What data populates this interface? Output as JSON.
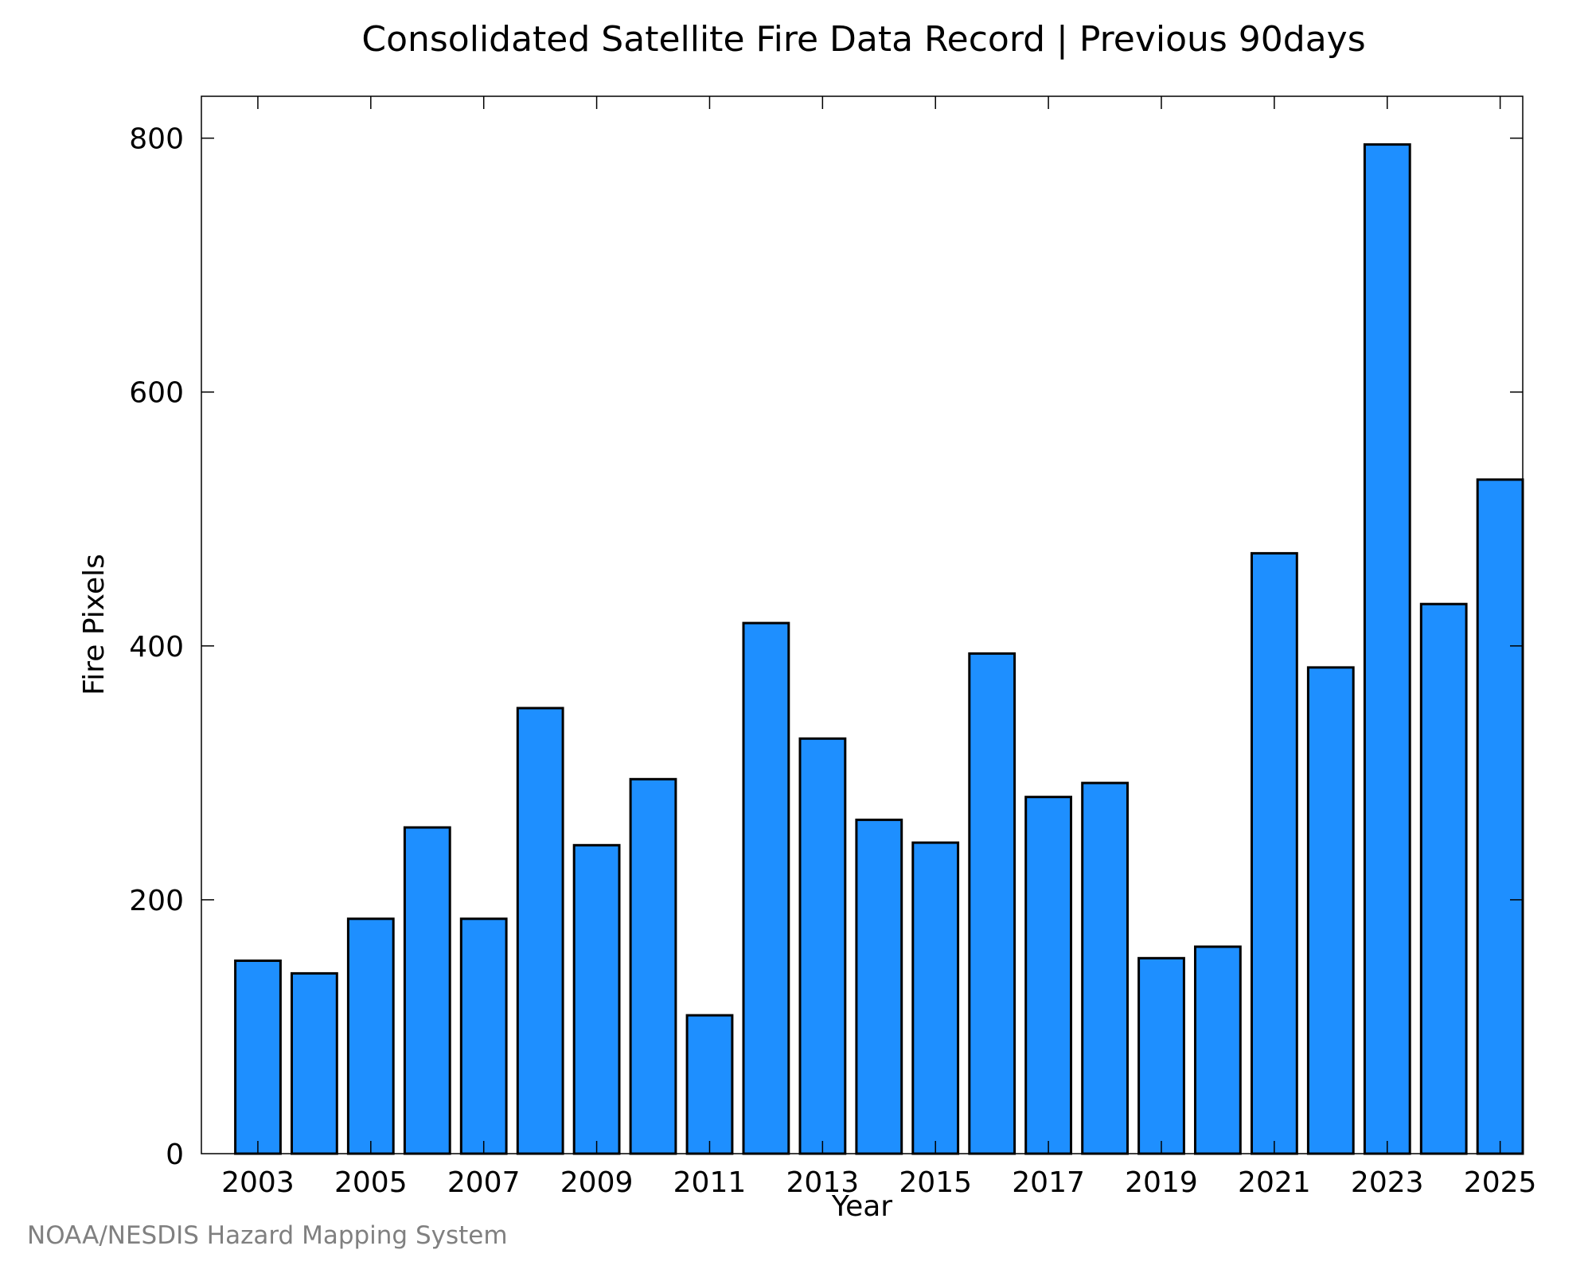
{
  "chart_data": {
    "type": "bar",
    "title": "Consolidated Satellite Fire Data Record | Previous 90days",
    "xlabel": "Year",
    "ylabel": "Fire Pixels",
    "categories": [
      "2003",
      "2004",
      "2005",
      "2006",
      "2007",
      "2008",
      "2009",
      "2010",
      "2011",
      "2012",
      "2013",
      "2014",
      "2015",
      "2016",
      "2017",
      "2018",
      "2019",
      "2020",
      "2021",
      "2022",
      "2023",
      "2024",
      "2025"
    ],
    "x_tick_labels": [
      "2003",
      "2005",
      "2007",
      "2009",
      "2011",
      "2013",
      "2015",
      "2017",
      "2019",
      "2021",
      "2023",
      "2025"
    ],
    "values": [
      152,
      142,
      185,
      257,
      185,
      351,
      243,
      295,
      109,
      418,
      327,
      263,
      245,
      394,
      281,
      292,
      154,
      163,
      473,
      383,
      795,
      433,
      531
    ],
    "ylim": [
      0,
      833
    ],
    "y_ticks": [
      0,
      200,
      400,
      600,
      800
    ],
    "bar_color": "#1e8fff",
    "edge_color": "#000000",
    "grid": false,
    "legend": "none"
  },
  "footer": {
    "credit": "NOAA/NESDIS Hazard Mapping System"
  }
}
